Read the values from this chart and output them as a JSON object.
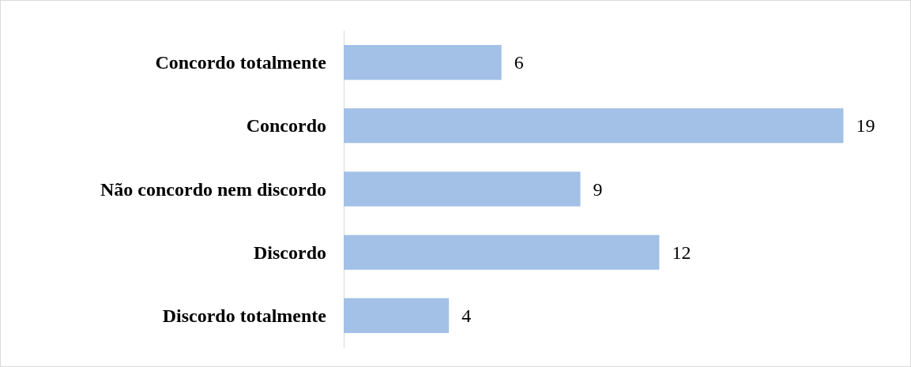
{
  "chart_data": {
    "type": "bar",
    "orientation": "horizontal",
    "categories": [
      "Concordo totalmente",
      "Concordo",
      "Não concordo nem discordo",
      "Discordo",
      "Discordo totalmente"
    ],
    "values": [
      6,
      19,
      9,
      12,
      4
    ],
    "color": "#a3c1e6",
    "data_labels": true,
    "grid": false
  }
}
